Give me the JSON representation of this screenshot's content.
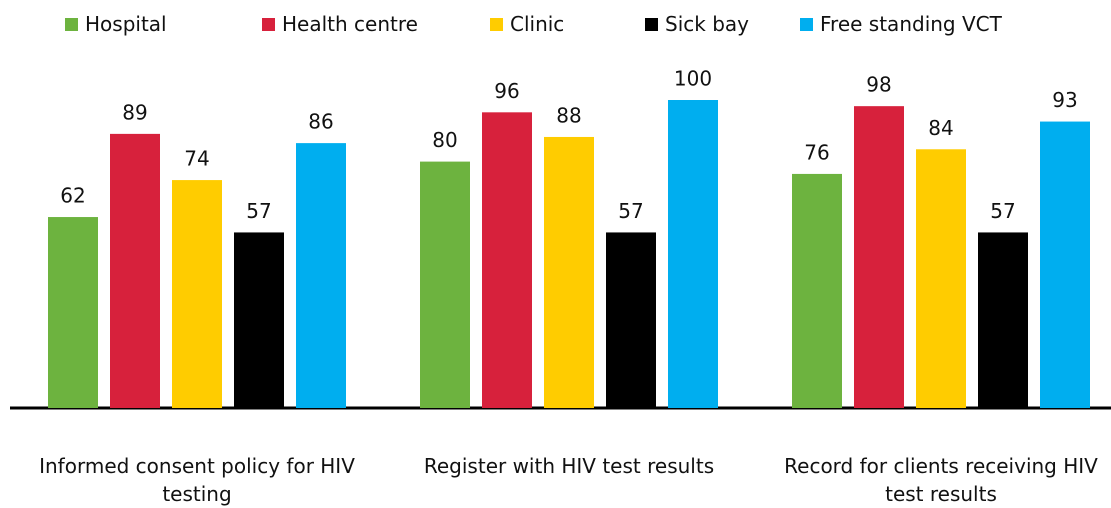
{
  "chart_data": {
    "type": "bar",
    "categories": [
      "Informed consent policy for HIV testing",
      "Register with HIV test results",
      "Record for clients receiving HIV test results"
    ],
    "series": [
      {
        "name": "Hospital",
        "color": "#6db33f",
        "values": [
          62,
          80,
          76
        ]
      },
      {
        "name": "Health centre",
        "color": "#d7213c",
        "values": [
          89,
          96,
          98
        ]
      },
      {
        "name": "Clinic",
        "color": "#ffcc00",
        "values": [
          74,
          88,
          84
        ]
      },
      {
        "name": "Sick bay",
        "color": "#000000",
        "values": [
          57,
          57,
          57
        ]
      },
      {
        "name": "Free standing VCT",
        "color": "#00aeef",
        "values": [
          86,
          100,
          93
        ]
      }
    ],
    "ylim": [
      0,
      100
    ],
    "legend": "top"
  }
}
